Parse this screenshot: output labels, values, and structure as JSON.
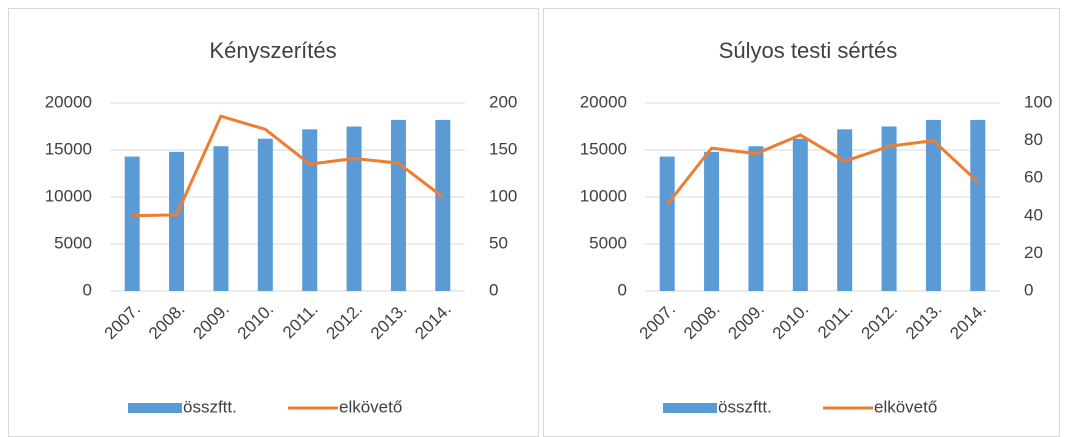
{
  "chart_data": [
    {
      "type": "combo",
      "title": "Kényszerítés",
      "categories": [
        "2007.",
        "2008.",
        "2009.",
        "2010.",
        "2011.",
        "2012.",
        "2013.",
        "2014."
      ],
      "series": [
        {
          "name": "összftt.",
          "type": "bar",
          "color": "#5b9bd5",
          "values": [
            14300,
            14800,
            15400,
            16200,
            17200,
            17500,
            18200,
            18200
          ]
        },
        {
          "name": "elkövető",
          "type": "line",
          "color": "#ed7d31",
          "axis": "y2",
          "values": [
            80,
            81,
            186,
            172,
            135,
            141,
            136,
            100
          ]
        }
      ],
      "ylim": [
        0,
        20000
      ],
      "yticks": [
        0,
        5000,
        10000,
        15000,
        20000
      ],
      "y2lim": [
        0,
        200
      ],
      "y2ticks": [
        0,
        50,
        100,
        150,
        200
      ],
      "grid": true,
      "legend": "bottom"
    },
    {
      "type": "combo",
      "title": "Súlyos testi sértés",
      "categories": [
        "2007.",
        "2008.",
        "2009.",
        "2010.",
        "2011.",
        "2012.",
        "2013.",
        "2014."
      ],
      "series": [
        {
          "name": "összftt.",
          "type": "bar",
          "color": "#5b9bd5",
          "values": [
            14300,
            14800,
            15400,
            16200,
            17200,
            17500,
            18200,
            18200
          ]
        },
        {
          "name": "elkövető",
          "type": "line",
          "color": "#ed7d31",
          "axis": "y2",
          "values": [
            46,
            76,
            73,
            83,
            69,
            77,
            80,
            58
          ]
        }
      ],
      "ylim": [
        0,
        20000
      ],
      "yticks": [
        0,
        5000,
        10000,
        15000,
        20000
      ],
      "y2lim": [
        0,
        100
      ],
      "y2ticks": [
        0,
        20,
        40,
        60,
        80,
        100
      ],
      "grid": true,
      "legend": "bottom"
    }
  ]
}
